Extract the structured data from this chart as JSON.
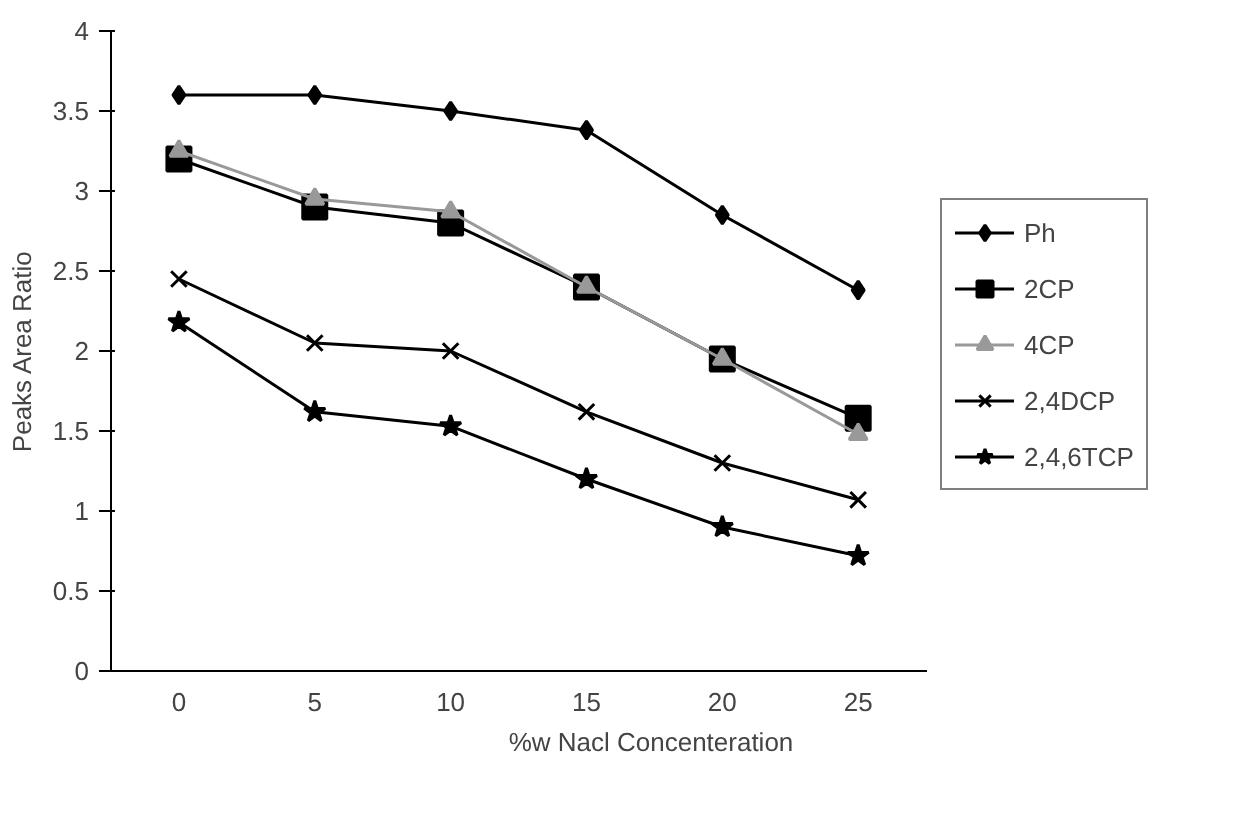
{
  "chart_data": {
    "type": "line",
    "xlabel": "%w Nacl Concenteration",
    "ylabel": "Peaks Area Ratio",
    "categories": [
      "0",
      "5",
      "10",
      "15",
      "20",
      "25"
    ],
    "ylim": [
      0,
      4
    ],
    "yticks": [
      0,
      0.5,
      1,
      1.5,
      2,
      2.5,
      3,
      3.5,
      4
    ],
    "grid": false,
    "legend": "right",
    "series": [
      {
        "name": "Ph",
        "color": "#000000",
        "marker": "diamond",
        "values": [
          3.6,
          3.6,
          3.5,
          3.38,
          2.85,
          2.38
        ]
      },
      {
        "name": "2CP",
        "color": "#000000",
        "marker": "square",
        "values": [
          3.2,
          2.9,
          2.8,
          2.4,
          1.95,
          1.58
        ]
      },
      {
        "name": "4CP",
        "color": "#999999",
        "marker": "triangle",
        "values": [
          3.25,
          2.95,
          2.87,
          2.4,
          1.95,
          1.48
        ]
      },
      {
        "name": "2,4DCP",
        "color": "#000000",
        "marker": "cross",
        "values": [
          2.45,
          2.05,
          2.0,
          1.62,
          1.3,
          1.07
        ]
      },
      {
        "name": "2,4,6TCP",
        "color": "#000000",
        "marker": "star",
        "values": [
          2.18,
          1.62,
          1.53,
          1.2,
          0.9,
          0.72
        ]
      }
    ]
  }
}
